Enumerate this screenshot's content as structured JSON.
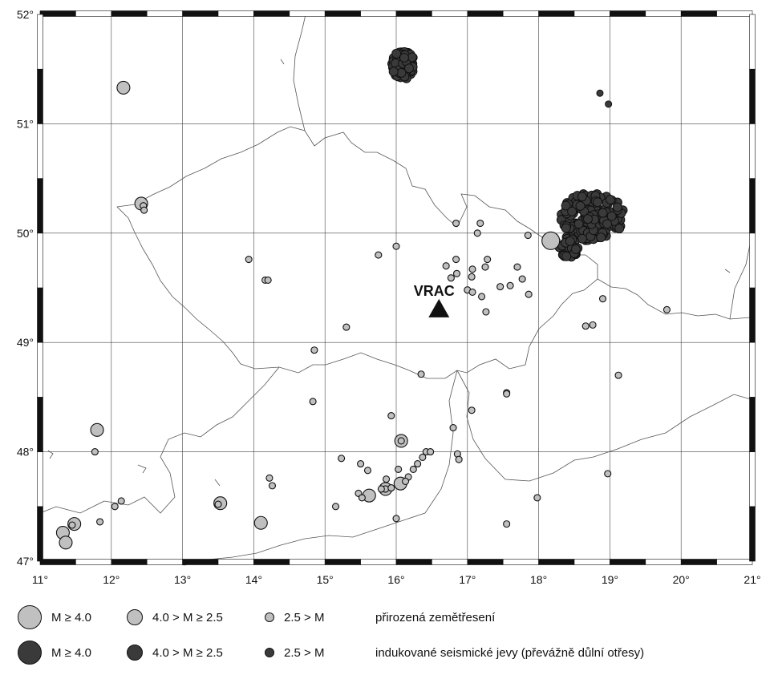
{
  "map": {
    "longitude_ticks": [
      "11°",
      "12°",
      "13°",
      "14°",
      "15°",
      "16°",
      "17°",
      "18°",
      "19°",
      "20°",
      "21°"
    ],
    "latitude_ticks": [
      "47°",
      "48°",
      "49°",
      "50°",
      "51°",
      "52°"
    ],
    "lon_range": [
      11,
      21
    ],
    "lat_range": [
      47,
      52
    ],
    "colors": {
      "natural": "#c0c0c0",
      "induced": "#3a3a3a",
      "border": "#555555",
      "grid": "#444444"
    },
    "station": {
      "label": "VRAC",
      "lon": 16.6,
      "lat": 49.31
    },
    "natural_events": [
      {
        "lon": 12.17,
        "lat": 51.33,
        "size": "medium"
      },
      {
        "lon": 12.42,
        "lat": 50.27,
        "size": "medium"
      },
      {
        "lon": 12.45,
        "lat": 50.25,
        "size": "small"
      },
      {
        "lon": 12.46,
        "lat": 50.21,
        "size": "small"
      },
      {
        "lon": 13.93,
        "lat": 49.76,
        "size": "small"
      },
      {
        "lon": 14.16,
        "lat": 49.57,
        "size": "small"
      },
      {
        "lon": 14.2,
        "lat": 49.57,
        "size": "small"
      },
      {
        "lon": 14.85,
        "lat": 48.93,
        "size": "small"
      },
      {
        "lon": 15.3,
        "lat": 49.14,
        "size": "small"
      },
      {
        "lon": 15.75,
        "lat": 49.8,
        "size": "small"
      },
      {
        "lon": 16.0,
        "lat": 49.88,
        "size": "small"
      },
      {
        "lon": 16.84,
        "lat": 50.09,
        "size": "small"
      },
      {
        "lon": 17.14,
        "lat": 50.0,
        "size": "small"
      },
      {
        "lon": 17.18,
        "lat": 50.09,
        "size": "small"
      },
      {
        "lon": 16.84,
        "lat": 49.76,
        "size": "small"
      },
      {
        "lon": 16.7,
        "lat": 49.7,
        "size": "small"
      },
      {
        "lon": 16.85,
        "lat": 49.63,
        "size": "small"
      },
      {
        "lon": 16.77,
        "lat": 49.59,
        "size": "small"
      },
      {
        "lon": 17.28,
        "lat": 49.76,
        "size": "small"
      },
      {
        "lon": 17.25,
        "lat": 49.69,
        "size": "small"
      },
      {
        "lon": 17.07,
        "lat": 49.67,
        "size": "small"
      },
      {
        "lon": 17.06,
        "lat": 49.6,
        "size": "small"
      },
      {
        "lon": 17.7,
        "lat": 49.69,
        "size": "small"
      },
      {
        "lon": 17.77,
        "lat": 49.58,
        "size": "small"
      },
      {
        "lon": 17.6,
        "lat": 49.52,
        "size": "small"
      },
      {
        "lon": 17.46,
        "lat": 49.51,
        "size": "small"
      },
      {
        "lon": 17.0,
        "lat": 49.48,
        "size": "small"
      },
      {
        "lon": 17.07,
        "lat": 49.46,
        "size": "small"
      },
      {
        "lon": 17.2,
        "lat": 49.42,
        "size": "small"
      },
      {
        "lon": 17.26,
        "lat": 49.28,
        "size": "small"
      },
      {
        "lon": 17.86,
        "lat": 49.44,
        "size": "small"
      },
      {
        "lon": 17.85,
        "lat": 49.98,
        "size": "small"
      },
      {
        "lon": 18.17,
        "lat": 49.93,
        "size": "large"
      },
      {
        "lon": 18.9,
        "lat": 49.4,
        "size": "small"
      },
      {
        "lon": 18.66,
        "lat": 49.15,
        "size": "small"
      },
      {
        "lon": 18.76,
        "lat": 49.16,
        "size": "small"
      },
      {
        "lon": 19.8,
        "lat": 49.3,
        "size": "small"
      },
      {
        "lon": 19.12,
        "lat": 48.7,
        "size": "small"
      },
      {
        "lon": 18.97,
        "lat": 47.8,
        "size": "small"
      },
      {
        "lon": 17.98,
        "lat": 47.58,
        "size": "small"
      },
      {
        "lon": 17.55,
        "lat": 48.54,
        "size": "small"
      },
      {
        "lon": 17.55,
        "lat": 48.53,
        "size": "small"
      },
      {
        "lon": 17.06,
        "lat": 48.38,
        "size": "small"
      },
      {
        "lon": 16.8,
        "lat": 48.22,
        "size": "small"
      },
      {
        "lon": 16.86,
        "lat": 47.98,
        "size": "small"
      },
      {
        "lon": 16.88,
        "lat": 47.93,
        "size": "small"
      },
      {
        "lon": 16.42,
        "lat": 48.0,
        "size": "small"
      },
      {
        "lon": 16.48,
        "lat": 48.0,
        "size": "small"
      },
      {
        "lon": 16.37,
        "lat": 47.95,
        "size": "small"
      },
      {
        "lon": 16.3,
        "lat": 47.89,
        "size": "small"
      },
      {
        "lon": 16.24,
        "lat": 47.84,
        "size": "small"
      },
      {
        "lon": 16.17,
        "lat": 47.77,
        "size": "small"
      },
      {
        "lon": 16.03,
        "lat": 47.84,
        "size": "small"
      },
      {
        "lon": 16.07,
        "lat": 48.1,
        "size": "medium"
      },
      {
        "lon": 16.07,
        "lat": 48.1,
        "size": "small"
      },
      {
        "lon": 15.93,
        "lat": 48.33,
        "size": "small"
      },
      {
        "lon": 16.35,
        "lat": 48.71,
        "size": "small"
      },
      {
        "lon": 16.06,
        "lat": 47.71,
        "size": "medium"
      },
      {
        "lon": 16.13,
        "lat": 47.73,
        "size": "small"
      },
      {
        "lon": 15.85,
        "lat": 47.66,
        "size": "medium"
      },
      {
        "lon": 15.85,
        "lat": 47.66,
        "size": "small"
      },
      {
        "lon": 15.79,
        "lat": 47.66,
        "size": "small"
      },
      {
        "lon": 15.93,
        "lat": 47.67,
        "size": "small"
      },
      {
        "lon": 15.86,
        "lat": 47.75,
        "size": "small"
      },
      {
        "lon": 15.62,
        "lat": 47.6,
        "size": "medium"
      },
      {
        "lon": 15.47,
        "lat": 47.62,
        "size": "small"
      },
      {
        "lon": 15.52,
        "lat": 47.58,
        "size": "small"
      },
      {
        "lon": 15.5,
        "lat": 47.89,
        "size": "small"
      },
      {
        "lon": 15.6,
        "lat": 47.83,
        "size": "small"
      },
      {
        "lon": 15.23,
        "lat": 47.94,
        "size": "small"
      },
      {
        "lon": 15.15,
        "lat": 47.5,
        "size": "small"
      },
      {
        "lon": 16.0,
        "lat": 47.39,
        "size": "small"
      },
      {
        "lon": 17.55,
        "lat": 47.34,
        "size": "small"
      },
      {
        "lon": 14.83,
        "lat": 48.46,
        "size": "small"
      },
      {
        "lon": 14.22,
        "lat": 47.76,
        "size": "small"
      },
      {
        "lon": 14.26,
        "lat": 47.69,
        "size": "small"
      },
      {
        "lon": 14.1,
        "lat": 47.35,
        "size": "medium"
      },
      {
        "lon": 13.53,
        "lat": 47.53,
        "size": "medium"
      },
      {
        "lon": 13.5,
        "lat": 47.52,
        "size": "small"
      },
      {
        "lon": 11.8,
        "lat": 48.2,
        "size": "medium"
      },
      {
        "lon": 11.77,
        "lat": 48.0,
        "size": "small"
      },
      {
        "lon": 12.14,
        "lat": 47.55,
        "size": "small"
      },
      {
        "lon": 12.05,
        "lat": 47.5,
        "size": "small"
      },
      {
        "lon": 11.84,
        "lat": 47.36,
        "size": "small"
      },
      {
        "lon": 11.48,
        "lat": 47.34,
        "size": "medium"
      },
      {
        "lon": 11.45,
        "lat": 47.33,
        "size": "small"
      },
      {
        "lon": 11.32,
        "lat": 47.26,
        "size": "medium"
      },
      {
        "lon": 11.36,
        "lat": 47.17,
        "size": "medium"
      }
    ],
    "induced_events": [
      {
        "lon": 18.86,
        "lat": 51.28,
        "size": "small"
      },
      {
        "lon": 18.98,
        "lat": 51.18,
        "size": "small"
      }
    ],
    "induced_clusters": [
      {
        "name": "legnica-glogow",
        "center_lon": 16.1,
        "center_lat": 51.54,
        "spread_lon": 0.16,
        "spread_lat": 0.13,
        "count": 90
      },
      {
        "name": "upper-silesia",
        "center_lon": 18.75,
        "center_lat": 50.15,
        "spread_lon": 0.45,
        "spread_lat": 0.22,
        "count": 170
      },
      {
        "name": "ostrava-karvina",
        "center_lon": 18.42,
        "center_lat": 49.87,
        "spread_lon": 0.13,
        "spread_lat": 0.1,
        "count": 45
      }
    ]
  },
  "legend": {
    "natural": [
      {
        "label": "M ≥ 4.0"
      },
      {
        "label": "4.0 > M ≥ 2.5"
      },
      {
        "label": "2.5 > M"
      }
    ],
    "natural_caption": "přirozená zemětřesení",
    "induced": [
      {
        "label": "M ≥ 4.0"
      },
      {
        "label": "4.0 > M ≥ 2.5"
      },
      {
        "label": "2.5 > M"
      }
    ],
    "induced_caption": "indukované seismické jevy (převážně důlní otřesy)"
  }
}
